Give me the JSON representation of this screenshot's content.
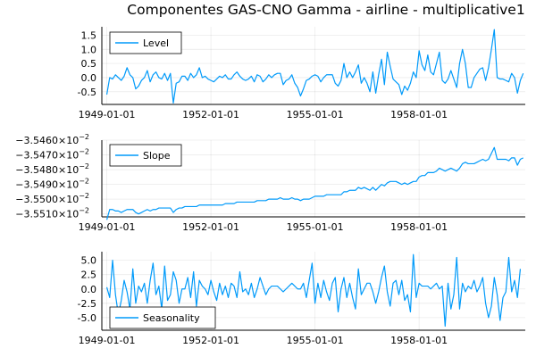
{
  "title": "Componentes GAS-CNO Gamma - airline - multiplicative1",
  "colors": {
    "series": "#009AFA"
  },
  "chart_data": [
    {
      "type": "line",
      "legend": "Level",
      "legend_position": "top-left",
      "grid": true,
      "x_start": "1949-01-01",
      "x_end": "1960-12-01",
      "x_frequency": "monthly",
      "xticks": [
        "1949-01-01",
        "1952-01-01",
        "1955-01-01",
        "1958-01-01"
      ],
      "ylim": [
        -0.95,
        1.8
      ],
      "yticks": [
        1.5,
        1.0,
        0.5,
        0.0,
        -0.5
      ],
      "ytick_labels": [
        "1.5",
        "1.0",
        "0.5",
        "0.0",
        "-0.5"
      ],
      "values": [
        -0.6,
        0.0,
        -0.05,
        0.1,
        0.0,
        -0.1,
        0.05,
        0.35,
        0.1,
        0.0,
        -0.4,
        -0.3,
        -0.1,
        0.0,
        0.25,
        -0.15,
        0.1,
        0.2,
        0.0,
        -0.05,
        0.15,
        -0.1,
        0.15,
        -0.9,
        -0.2,
        -0.15,
        0.05,
        0.05,
        -0.1,
        0.15,
        0.0,
        0.1,
        0.35,
        0.0,
        0.05,
        -0.05,
        -0.1,
        -0.15,
        -0.05,
        0.05,
        0.0,
        0.1,
        -0.05,
        -0.05,
        0.1,
        0.2,
        0.05,
        -0.05,
        -0.1,
        -0.05,
        0.05,
        -0.15,
        0.1,
        0.05,
        -0.15,
        -0.05,
        0.1,
        0.0,
        0.1,
        0.15,
        0.15,
        -0.25,
        -0.1,
        -0.05,
        0.1,
        -0.2,
        -0.35,
        -0.65,
        -0.4,
        -0.1,
        -0.05,
        0.05,
        0.1,
        0.05,
        -0.15,
        0.0,
        0.1,
        0.1,
        0.1,
        -0.2,
        -0.3,
        -0.1,
        0.5,
        0.0,
        0.2,
        0.0,
        0.2,
        0.45,
        -0.2,
        0.0,
        -0.2,
        -0.5,
        0.2,
        -0.55,
        0.1,
        0.65,
        -0.25,
        0.9,
        0.4,
        -0.05,
        -0.15,
        -0.25,
        -0.6,
        -0.3,
        -0.45,
        -0.2,
        0.2,
        0.0,
        0.95,
        0.45,
        0.25,
        0.8,
        0.2,
        0.1,
        0.5,
        0.9,
        -0.1,
        -0.2,
        -0.05,
        0.25,
        -0.05,
        -0.35,
        0.5,
        1.0,
        0.5,
        -0.35,
        -0.35,
        0.0,
        0.15,
        0.3,
        0.35,
        -0.1,
        0.35,
        1.0,
        1.7,
        0.0,
        -0.05,
        -0.05,
        -0.1,
        -0.15,
        0.15,
        0.0,
        -0.55,
        -0.1,
        0.15
      ]
    },
    {
      "type": "line",
      "legend": "Slope",
      "legend_position": "top-left",
      "grid": true,
      "x_start": "1949-01-01",
      "x_end": "1960-12-01",
      "x_frequency": "monthly",
      "xticks": [
        "1949-01-01",
        "1952-01-01",
        "1955-01-01",
        "1958-01-01"
      ],
      "ylim": [
        -0.035512,
        -0.03546
      ],
      "yticks": [
        -0.03546,
        -0.03547,
        -0.03548,
        -0.03549,
        -0.0355,
        -0.03551
      ],
      "ytick_labels": [
        "−3.5460×10",
        "−3.5470×10",
        "−3.5480×10",
        "−3.5490×10",
        "−3.5500×10",
        "−3.5510×10"
      ],
      "ytick_exponent": "−2",
      "values": [
        -0.035514,
        -0.035507,
        -0.035507,
        -0.035508,
        -0.035508,
        -0.035509,
        -0.035508,
        -0.035507,
        -0.035507,
        -0.035507,
        -0.035509,
        -0.03551,
        -0.035509,
        -0.035508,
        -0.035507,
        -0.035508,
        -0.035507,
        -0.035507,
        -0.035506,
        -0.035506,
        -0.035506,
        -0.035506,
        -0.035506,
        -0.035509,
        -0.035507,
        -0.035506,
        -0.035506,
        -0.035505,
        -0.035505,
        -0.035505,
        -0.035505,
        -0.035505,
        -0.035504,
        -0.035504,
        -0.035504,
        -0.035504,
        -0.035504,
        -0.035504,
        -0.035504,
        -0.035504,
        -0.035504,
        -0.035503,
        -0.035503,
        -0.035503,
        -0.035503,
        -0.035502,
        -0.035502,
        -0.035502,
        -0.035502,
        -0.035502,
        -0.035502,
        -0.035502,
        -0.035501,
        -0.035501,
        -0.035501,
        -0.035501,
        -0.0355,
        -0.0355,
        -0.0355,
        -0.0355,
        -0.035499,
        -0.0355,
        -0.0355,
        -0.0355,
        -0.035499,
        -0.0355,
        -0.0355,
        -0.035501,
        -0.0355,
        -0.0355,
        -0.0355,
        -0.035499,
        -0.035498,
        -0.035498,
        -0.035498,
        -0.035498,
        -0.035497,
        -0.035497,
        -0.035497,
        -0.035497,
        -0.035497,
        -0.035497,
        -0.035495,
        -0.035495,
        -0.035494,
        -0.035494,
        -0.035494,
        -0.035492,
        -0.035493,
        -0.035492,
        -0.035493,
        -0.035494,
        -0.035492,
        -0.035494,
        -0.035492,
        -0.03549,
        -0.035491,
        -0.035489,
        -0.035488,
        -0.035488,
        -0.035488,
        -0.035489,
        -0.03549,
        -0.035489,
        -0.03549,
        -0.035489,
        -0.035488,
        -0.035488,
        -0.035485,
        -0.035484,
        -0.035484,
        -0.035482,
        -0.035482,
        -0.035482,
        -0.035481,
        -0.035479,
        -0.03548,
        -0.035481,
        -0.03548,
        -0.035479,
        -0.03548,
        -0.035481,
        -0.035479,
        -0.035476,
        -0.035475,
        -0.035476,
        -0.035476,
        -0.035476,
        -0.035475,
        -0.035474,
        -0.035473,
        -0.035474,
        -0.035473,
        -0.035469,
        -0.035465,
        -0.035473,
        -0.035473,
        -0.035473,
        -0.035473,
        -0.035474,
        -0.035472,
        -0.035472,
        -0.035477,
        -0.035473,
        -0.035472
      ]
    },
    {
      "type": "line",
      "legend": "Seasonality",
      "legend_position": "bottom-left",
      "grid": true,
      "x_start": "1949-01-01",
      "x_end": "1960-12-01",
      "x_frequency": "monthly",
      "xticks": [
        "1949-01-01",
        "1952-01-01",
        "1955-01-01",
        "1958-01-01"
      ],
      "ylim": [
        -7.2,
        6.5
      ],
      "yticks": [
        5.0,
        2.5,
        0.0,
        -2.5,
        -5.0
      ],
      "ytick_labels": [
        "5.0",
        "2.5",
        "0.0",
        "-2.5",
        "-5.0"
      ],
      "values": [
        0.3,
        -1.5,
        5.0,
        -1.0,
        -4.5,
        -2.0,
        1.5,
        -0.5,
        -3.5,
        3.5,
        -2.5,
        0.5,
        -0.5,
        1.0,
        -2.5,
        1.5,
        4.5,
        -1.0,
        0.5,
        -3.5,
        4.0,
        -2.0,
        -1.0,
        3.0,
        1.5,
        -2.5,
        0.0,
        0.0,
        2.0,
        -1.5,
        3.0,
        -3.0,
        1.5,
        0.5,
        0.0,
        -1.0,
        1.5,
        -0.5,
        -2.0,
        1.0,
        -1.0,
        0.5,
        -1.5,
        1.0,
        0.5,
        -1.5,
        3.0,
        -0.5,
        0.0,
        -1.0,
        1.0,
        -1.5,
        0.0,
        2.0,
        0.5,
        -1.0,
        0.0,
        0.5,
        0.5,
        0.5,
        0.0,
        -0.5,
        0.0,
        0.5,
        1.0,
        0.5,
        0.0,
        0.0,
        1.0,
        -1.5,
        1.5,
        4.5,
        -2.5,
        1.0,
        -1.5,
        1.5,
        -0.5,
        -2.0,
        1.0,
        2.0,
        -4.0,
        0.0,
        2.0,
        -1.5,
        1.0,
        -1.5,
        -3.5,
        3.5,
        -1.0,
        0.0,
        1.0,
        1.0,
        -0.5,
        -2.5,
        -0.5,
        2.0,
        4.0,
        -0.5,
        -3.0,
        1.0,
        1.5,
        -1.0,
        1.5,
        -2.0,
        -1.0,
        -4.0,
        6.0,
        -1.5,
        1.0,
        0.5,
        0.5,
        0.5,
        0.0,
        0.5,
        1.0,
        0.0,
        0.5,
        -6.5,
        1.0,
        -3.5,
        -1.0,
        5.5,
        -3.5,
        1.0,
        -0.5,
        0.5,
        0.0,
        1.5,
        -0.5,
        0.5,
        2.0,
        -2.5,
        -5.0,
        -3.0,
        2.0,
        -1.0,
        -5.5,
        -1.5,
        -0.5,
        5.5,
        -0.5,
        1.5,
        -1.5,
        3.5
      ]
    }
  ]
}
